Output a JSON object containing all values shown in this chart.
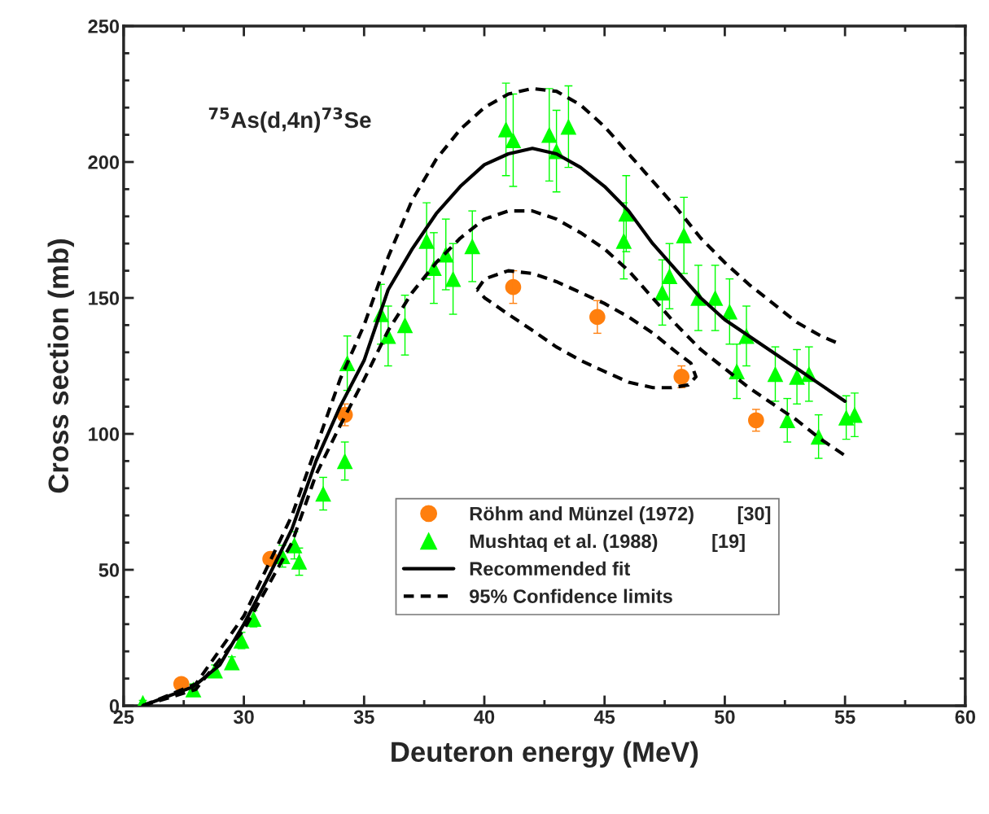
{
  "chart_data": {
    "type": "scatter",
    "xlabel": "Deuteron energy (MeV)",
    "ylabel": "Cross section (mb)",
    "xlim": [
      25,
      60
    ],
    "ylim": [
      0,
      250
    ],
    "xticks": [
      25,
      30,
      35,
      40,
      45,
      50,
      55,
      60
    ],
    "yticks": [
      0,
      50,
      100,
      150,
      200,
      250
    ],
    "grid": false,
    "legend": "bottom right",
    "annotations": [
      "$^{75}$As(d,4n)$^{73}$Se"
    ],
    "series": [
      {
        "name": "Röhm and Münzel (1972)        [30]",
        "marker": "circle",
        "color": "#ff7f0e",
        "x": [
          27.4,
          31.1,
          34.2,
          41.2,
          44.7,
          48.2,
          51.3
        ],
        "values": [
          8,
          54,
          107,
          154,
          143,
          121,
          105
        ],
        "errors": [
          1,
          2,
          4,
          6,
          6,
          4,
          4
        ]
      },
      {
        "name": "Mushtaq et al. (1988)          [19]",
        "marker": "triangle",
        "color": "#00ff00",
        "x": [
          25.8,
          27.9,
          28.8,
          29.5,
          29.9,
          30.4,
          31.6,
          32.1,
          32.3,
          33.3,
          34.2,
          34.3,
          35.7,
          36.0,
          36.7,
          37.6,
          37.9,
          38.4,
          38.7,
          39.5,
          40.9,
          41.2,
          42.7,
          43.0,
          43.5,
          45.8,
          45.9,
          47.4,
          47.7,
          48.3,
          48.9,
          49.6,
          50.2,
          50.5,
          50.9,
          52.1,
          52.6,
          53.0,
          53.5,
          53.9,
          55.05,
          55.4
        ],
        "values": [
          1,
          6,
          13,
          16,
          24,
          32,
          55,
          59,
          53,
          78,
          90,
          126,
          144,
          136,
          140,
          171,
          161,
          166,
          157,
          169,
          212,
          208,
          210,
          204,
          213,
          171,
          181,
          152,
          158,
          173,
          150,
          150,
          145,
          123,
          136,
          122,
          105,
          121,
          122,
          99,
          106,
          107
        ],
        "errors": [
          1,
          2,
          2,
          2,
          3,
          3,
          4,
          5,
          5,
          6,
          7,
          10,
          11,
          11,
          11,
          14,
          13,
          13,
          13,
          13,
          17,
          17,
          17,
          15,
          15,
          14,
          14,
          12,
          12,
          14,
          12,
          12,
          12,
          10,
          11,
          10,
          8,
          10,
          10,
          8,
          8,
          8
        ]
      },
      {
        "name": "Recommended fit",
        "type": "line",
        "line_style": "solid",
        "color": "#000000",
        "x": [
          25.8,
          27.9,
          29,
          30,
          31,
          32,
          33,
          34,
          35,
          36,
          37,
          38,
          39,
          40,
          41,
          42,
          43,
          44,
          45,
          46,
          47,
          48,
          49,
          50,
          51,
          52,
          53,
          54,
          55
        ],
        "values": [
          0,
          7,
          15,
          30,
          47,
          65,
          90,
          110,
          127,
          153,
          168,
          181,
          191,
          199,
          203,
          205,
          203,
          198,
          191,
          182,
          170,
          160,
          150,
          142,
          136,
          130,
          124,
          118,
          112
        ]
      },
      {
        "name": "95% Confidence limits",
        "type": "line",
        "line_style": "dashed",
        "color": "#000000",
        "x": [
          25.8,
          28,
          30,
          32,
          33,
          34,
          35,
          36,
          37,
          38,
          39,
          40,
          41,
          42,
          43,
          44,
          45,
          46,
          47,
          48,
          49,
          50,
          51,
          52,
          53,
          54,
          54.8
        ],
        "values": [
          0,
          8,
          33,
          70,
          95,
          120,
          140,
          165,
          186,
          201,
          212,
          220,
          225,
          227,
          226,
          221,
          213,
          203,
          193,
          183,
          172,
          163,
          155,
          148,
          141,
          136,
          133
        ]
      },
      {
        "type": "line",
        "line_style": "dashed",
        "color": "#000000",
        "x": [
          25.8,
          28,
          30,
          32,
          33,
          34,
          35,
          36,
          37,
          38,
          39,
          40,
          41,
          42,
          43,
          44,
          45,
          46,
          47,
          48,
          49,
          50,
          51,
          52,
          53,
          54,
          55
        ],
        "values": [
          0,
          6,
          28,
          60,
          85,
          103,
          120,
          138,
          152,
          163,
          172,
          179,
          182,
          182,
          179,
          174,
          168,
          160,
          150,
          140,
          131,
          124,
          117,
          111,
          105,
          98,
          92
        ]
      }
    ]
  }
}
